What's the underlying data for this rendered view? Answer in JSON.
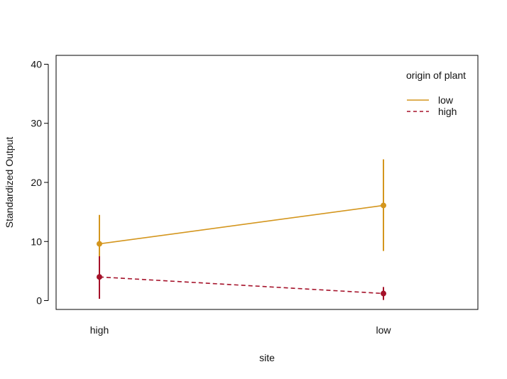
{
  "chart_data": {
    "type": "line",
    "title": "",
    "xlabel": "site",
    "ylabel": "Standardized Output",
    "categories": [
      "high",
      "low"
    ],
    "ylim": [
      -1.5,
      41.5
    ],
    "yticks": [
      0,
      10,
      20,
      30,
      40
    ],
    "grid": false,
    "legend": {
      "title": "origin of plant",
      "placement": "top-right"
    },
    "series": [
      {
        "name": "low",
        "color": "#D4961E",
        "line_style": "solid",
        "values": [
          9.6,
          16.1
        ],
        "error_low": [
          4.8,
          8.4
        ],
        "error_high": [
          14.5,
          23.9
        ]
      },
      {
        "name": "high",
        "color": "#A5122A",
        "line_style": "dashed",
        "values": [
          4.0,
          1.2
        ],
        "error_low": [
          0.3,
          0.1
        ],
        "error_high": [
          7.5,
          2.3
        ]
      }
    ]
  }
}
